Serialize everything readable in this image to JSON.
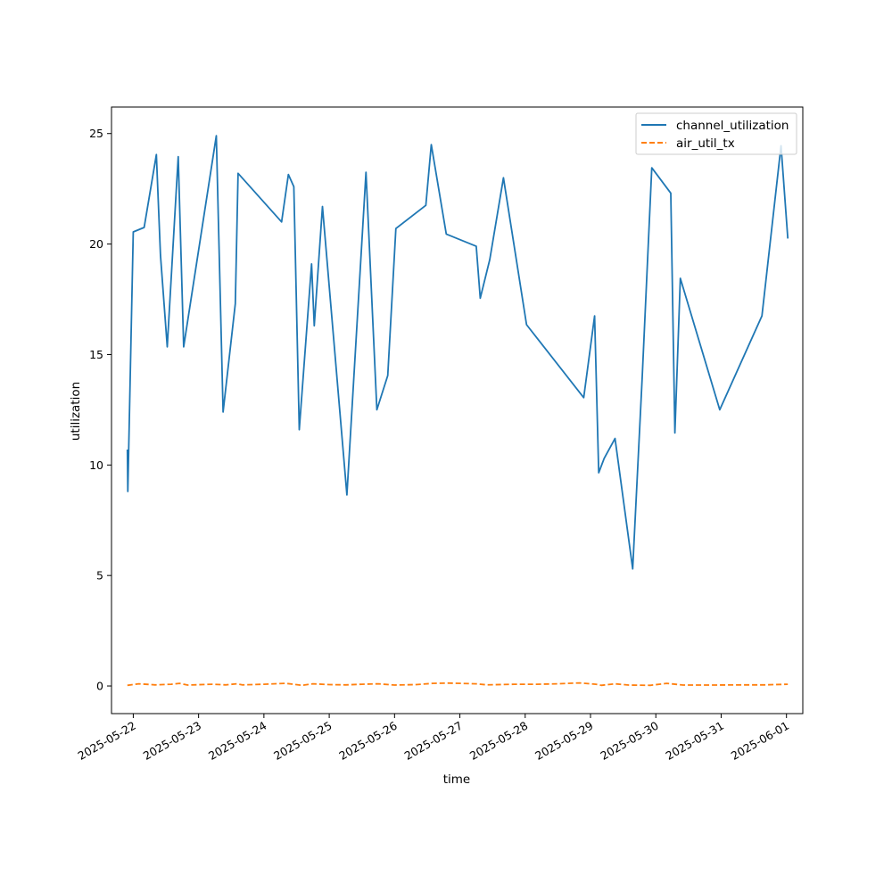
{
  "chart_data": {
    "type": "line",
    "title": "",
    "xlabel": "time",
    "ylabel": "utilization",
    "x_ticks": [
      "2025-05-22",
      "2025-05-23",
      "2025-05-24",
      "2025-05-25",
      "2025-05-26",
      "2025-05-27",
      "2025-05-28",
      "2025-05-29",
      "2025-05-30",
      "2025-05-31",
      "2025-06-01"
    ],
    "y_ticks": [
      0,
      5,
      10,
      15,
      20,
      25
    ],
    "xlim": [
      "2025-05-21T16:00",
      "2025-06-01T06:00"
    ],
    "ylim": [
      -1.25,
      26.2
    ],
    "grid": false,
    "legend_position": "top-right",
    "series": [
      {
        "name": "channel_utilization",
        "color": "#1f77b4",
        "style": "solid",
        "points": [
          [
            "2025-05-21T21:50",
            10.7
          ],
          [
            "2025-05-21T22:00",
            8.8
          ],
          [
            "2025-05-22T00:00",
            20.55
          ],
          [
            "2025-05-22T04:00",
            20.75
          ],
          [
            "2025-05-22T08:30",
            24.05
          ],
          [
            "2025-05-22T10:00",
            19.5
          ],
          [
            "2025-05-22T12:30",
            15.35
          ],
          [
            "2025-05-22T15:30",
            21.8
          ],
          [
            "2025-05-22T16:30",
            23.95
          ],
          [
            "2025-05-22T18:30",
            15.35
          ],
          [
            "2025-05-23T06:30",
            24.9
          ],
          [
            "2025-05-23T09:00",
            12.4
          ],
          [
            "2025-05-23T13:30",
            17.3
          ],
          [
            "2025-05-23T14:30",
            23.2
          ],
          [
            "2025-05-24T06:30",
            21.0
          ],
          [
            "2025-05-24T09:00",
            23.15
          ],
          [
            "2025-05-24T11:00",
            22.6
          ],
          [
            "2025-05-24T13:00",
            11.6
          ],
          [
            "2025-05-24T17:30",
            19.1
          ],
          [
            "2025-05-24T18:30",
            16.3
          ],
          [
            "2025-05-24T21:30",
            21.7
          ],
          [
            "2025-05-25T06:30",
            8.65
          ],
          [
            "2025-05-25T13:30",
            23.25
          ],
          [
            "2025-05-25T17:30",
            12.5
          ],
          [
            "2025-05-25T21:30",
            14.05
          ],
          [
            "2025-05-26T00:30",
            20.7
          ],
          [
            "2025-05-26T11:30",
            21.75
          ],
          [
            "2025-05-26T13:30",
            24.5
          ],
          [
            "2025-05-26T19:00",
            20.45
          ],
          [
            "2025-05-27T06:00",
            19.9
          ],
          [
            "2025-05-27T07:30",
            17.55
          ],
          [
            "2025-05-27T11:00",
            19.3
          ],
          [
            "2025-05-27T16:00",
            23.0
          ],
          [
            "2025-05-28T00:30",
            16.35
          ],
          [
            "2025-05-28T21:30",
            13.05
          ],
          [
            "2025-05-29T01:30",
            16.75
          ],
          [
            "2025-05-29T03:00",
            9.65
          ],
          [
            "2025-05-29T05:00",
            10.3
          ],
          [
            "2025-05-29T09:00",
            11.2
          ],
          [
            "2025-05-29T15:30",
            5.3
          ],
          [
            "2025-05-29T19:00",
            14.0
          ],
          [
            "2025-05-29T22:30",
            23.45
          ],
          [
            "2025-05-30T05:30",
            22.3
          ],
          [
            "2025-05-30T07:00",
            11.45
          ],
          [
            "2025-05-30T09:00",
            18.45
          ],
          [
            "2025-05-30T23:30",
            12.5
          ],
          [
            "2025-05-31T15:00",
            16.75
          ],
          [
            "2025-05-31T22:00",
            24.45
          ],
          [
            "2025-06-01T00:30",
            20.25
          ]
        ]
      },
      {
        "name": "air_util_tx",
        "color": "#ff7f0e",
        "style": "dashed",
        "points": [
          [
            "2025-05-21T21:50",
            0.03
          ],
          [
            "2025-05-22T02:00",
            0.1
          ],
          [
            "2025-05-22T08:00",
            0.05
          ],
          [
            "2025-05-22T14:00",
            0.08
          ],
          [
            "2025-05-22T17:00",
            0.12
          ],
          [
            "2025-05-22T20:00",
            0.04
          ],
          [
            "2025-05-23T05:00",
            0.08
          ],
          [
            "2025-05-23T10:00",
            0.05
          ],
          [
            "2025-05-23T14:00",
            0.1
          ],
          [
            "2025-05-23T16:00",
            0.05
          ],
          [
            "2025-05-24T00:00",
            0.08
          ],
          [
            "2025-05-24T08:00",
            0.12
          ],
          [
            "2025-05-24T14:00",
            0.03
          ],
          [
            "2025-05-24T18:00",
            0.1
          ],
          [
            "2025-05-25T00:00",
            0.06
          ],
          [
            "2025-05-25T06:00",
            0.05
          ],
          [
            "2025-05-25T12:00",
            0.08
          ],
          [
            "2025-05-25T18:00",
            0.1
          ],
          [
            "2025-05-26T00:00",
            0.04
          ],
          [
            "2025-05-26T08:00",
            0.06
          ],
          [
            "2025-05-26T14:00",
            0.12
          ],
          [
            "2025-05-26T20:00",
            0.13
          ],
          [
            "2025-05-27T06:00",
            0.1
          ],
          [
            "2025-05-27T10:00",
            0.05
          ],
          [
            "2025-05-27T20:00",
            0.08
          ],
          [
            "2025-05-28T04:00",
            0.08
          ],
          [
            "2025-05-28T12:00",
            0.1
          ],
          [
            "2025-05-28T20:00",
            0.14
          ],
          [
            "2025-05-29T02:00",
            0.08
          ],
          [
            "2025-05-29T04:00",
            0.03
          ],
          [
            "2025-05-29T09:00",
            0.1
          ],
          [
            "2025-05-29T14:00",
            0.04
          ],
          [
            "2025-05-29T22:00",
            0.03
          ],
          [
            "2025-05-30T04:00",
            0.12
          ],
          [
            "2025-05-30T10:00",
            0.04
          ],
          [
            "2025-05-30T20:00",
            0.04
          ],
          [
            "2025-05-31T10:00",
            0.05
          ],
          [
            "2025-05-31T16:00",
            0.05
          ],
          [
            "2025-06-01T00:30",
            0.08
          ]
        ]
      }
    ]
  }
}
